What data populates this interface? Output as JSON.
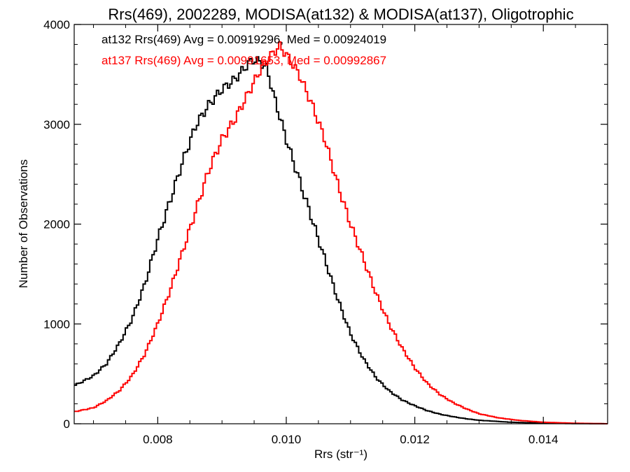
{
  "chart_data": {
    "type": "line",
    "title": "Rrs(469), 2002289, MODISA(at132) & MODISA(at137), Oligotrophic",
    "xlabel": "Rrs (str⁻¹)",
    "ylabel": "Number of Observations",
    "xlim": [
      0.0067,
      0.015
    ],
    "ylim": [
      0,
      4000
    ],
    "x_ticks": [
      0.008,
      0.01,
      0.012,
      0.014
    ],
    "x_tick_labels": [
      "0.008",
      "0.010",
      "0.012",
      "0.014"
    ],
    "y_ticks": [
      0,
      1000,
      2000,
      3000,
      4000
    ],
    "y_tick_labels": [
      "0",
      "1000",
      "2000",
      "3000",
      "4000"
    ],
    "grid": false,
    "legend_position": "top-left",
    "annotations": [
      {
        "text": "at132 Rrs(469) Avg = 0.00919296, Med = 0.00924019",
        "color": "#000000"
      },
      {
        "text": "at137 Rrs(469) Avg = 0.00991653, Med = 0.00992867",
        "color": "#ff0000"
      }
    ],
    "series": [
      {
        "color": "#000000",
        "x": [
          0.0067,
          0.007,
          0.0072,
          0.0074,
          0.0076,
          0.0078,
          0.008,
          0.0082,
          0.0084,
          0.0086,
          0.0088,
          0.009,
          0.0092,
          0.0094,
          0.0095,
          0.0096,
          0.0097,
          0.0098,
          0.01,
          0.0102,
          0.0104,
          0.0106,
          0.0108,
          0.011,
          0.0112,
          0.0114,
          0.0116,
          0.0118,
          0.012,
          0.0122,
          0.0124,
          0.0126,
          0.0128,
          0.013,
          0.0135,
          0.014,
          0.0145,
          0.015
        ],
        "y": [
          380,
          480,
          600,
          800,
          1050,
          1400,
          1850,
          2250,
          2650,
          3000,
          3200,
          3350,
          3450,
          3600,
          3650,
          3620,
          3560,
          3300,
          2850,
          2450,
          2050,
          1650,
          1250,
          900,
          650,
          460,
          330,
          240,
          180,
          130,
          95,
          70,
          50,
          35,
          15,
          6,
          2,
          0
        ]
      },
      {
        "color": "#ff0000",
        "x": [
          0.0067,
          0.007,
          0.0072,
          0.0074,
          0.0076,
          0.0078,
          0.008,
          0.0082,
          0.0084,
          0.0086,
          0.0088,
          0.009,
          0.0092,
          0.0094,
          0.0096,
          0.0098,
          0.0099,
          0.01,
          0.0102,
          0.0104,
          0.0106,
          0.0108,
          0.011,
          0.0112,
          0.0114,
          0.0116,
          0.0118,
          0.012,
          0.0122,
          0.0124,
          0.0126,
          0.0128,
          0.013,
          0.0133,
          0.0136,
          0.014,
          0.0145,
          0.015
        ],
        "y": [
          120,
          160,
          230,
          330,
          480,
          700,
          1000,
          1350,
          1750,
          2150,
          2550,
          2850,
          3050,
          3300,
          3550,
          3720,
          3780,
          3700,
          3500,
          3200,
          2850,
          2400,
          2000,
          1650,
          1300,
          1000,
          760,
          560,
          400,
          290,
          210,
          150,
          100,
          60,
          35,
          15,
          5,
          0
        ]
      }
    ]
  }
}
